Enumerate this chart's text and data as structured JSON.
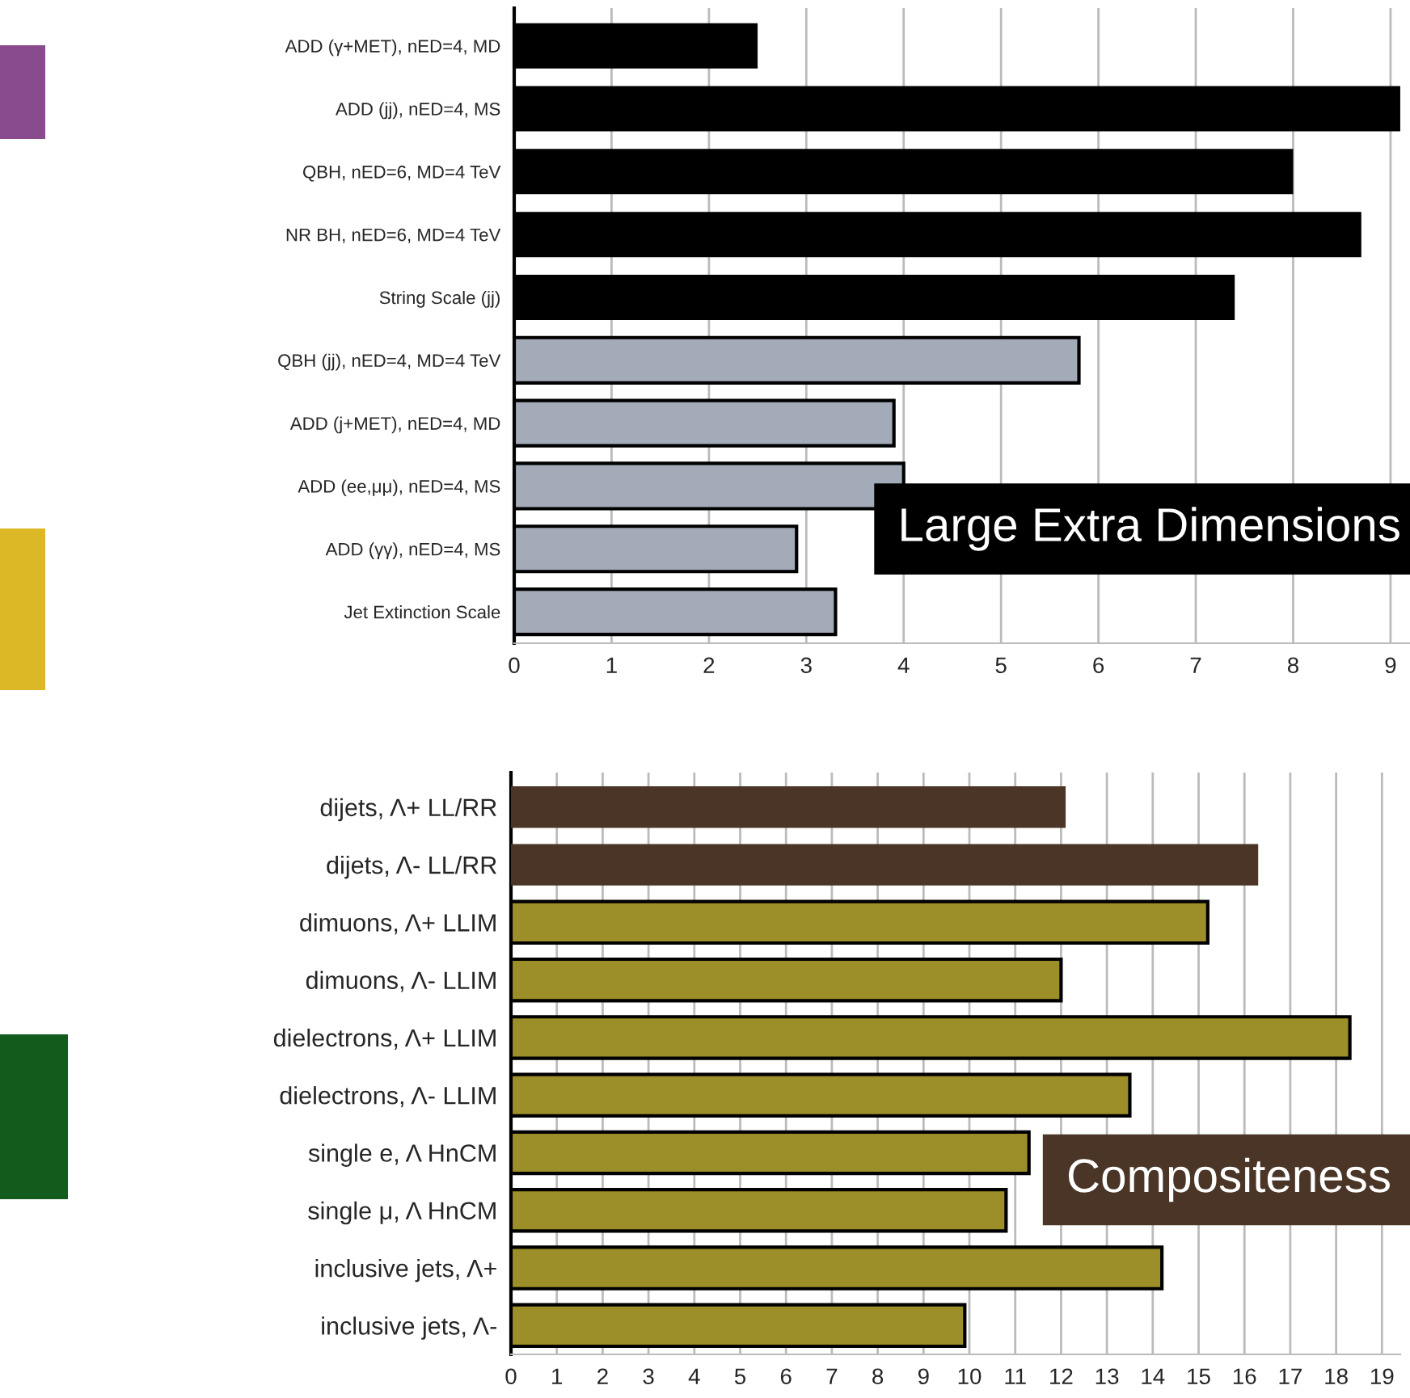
{
  "chart_data": [
    {
      "type": "bar",
      "orientation": "horizontal",
      "categories": [
        "ADD (γ+MET), nED=4, MD",
        "ADD (jj), nED=4, MS",
        "QBH, nED=6, MD=4 TeV",
        "NR BH, nED=6, MD=4 TeV",
        "String Scale (jj)",
        "QBH (jj), nED=4, MD=4 TeV",
        "ADD (j+MET), nED=4, MD",
        "ADD (ee,μμ), nED=4, MS",
        "ADD (γγ), nED=4, MS",
        "Jet Extinction Scale"
      ],
      "values": [
        2.5,
        9.1,
        8.0,
        8.7,
        7.4,
        5.8,
        3.9,
        4.0,
        2.9,
        3.3
      ],
      "colors": [
        "#000000",
        "#000000",
        "#000000",
        "#000000",
        "#000000",
        "#a3abb9",
        "#a3abb9",
        "#a3abb9",
        "#a3abb9",
        "#a3abb9"
      ],
      "xlim": [
        0,
        9.2
      ],
      "xticks": [
        0,
        1,
        2,
        3,
        4,
        5,
        6,
        7,
        8,
        9
      ],
      "grid": "x",
      "annotations": [
        "Large Extra Dimensions"
      ]
    },
    {
      "type": "bar",
      "orientation": "horizontal",
      "categories": [
        "dijets, Λ+ LL/RR",
        "dijets, Λ- LL/RR",
        "dimuons, Λ+ LLIM",
        "dimuons, Λ- LLIM",
        "dielectrons, Λ+ LLIM",
        "dielectrons, Λ- LLIM",
        "single e, Λ HnCM",
        "single μ, Λ HnCM",
        "inclusive jets, Λ+",
        "inclusive jets, Λ-"
      ],
      "values": [
        12.1,
        16.3,
        15.2,
        12.0,
        18.3,
        13.5,
        11.3,
        10.8,
        14.2,
        9.9
      ],
      "colors": [
        "#4a3527",
        "#4a3527",
        "#9c8e28",
        "#9c8e28",
        "#9c8e28",
        "#9c8e28",
        "#9c8e28",
        "#9c8e28",
        "#9c8e28",
        "#9c8e28"
      ],
      "xlim": [
        0,
        19.4
      ],
      "xticks": [
        0,
        1,
        2,
        3,
        4,
        5,
        6,
        7,
        8,
        9,
        10,
        11,
        12,
        13,
        14,
        15,
        16,
        17,
        18,
        19
      ],
      "grid": "x",
      "annotations": [
        "Compositeness"
      ]
    }
  ]
}
